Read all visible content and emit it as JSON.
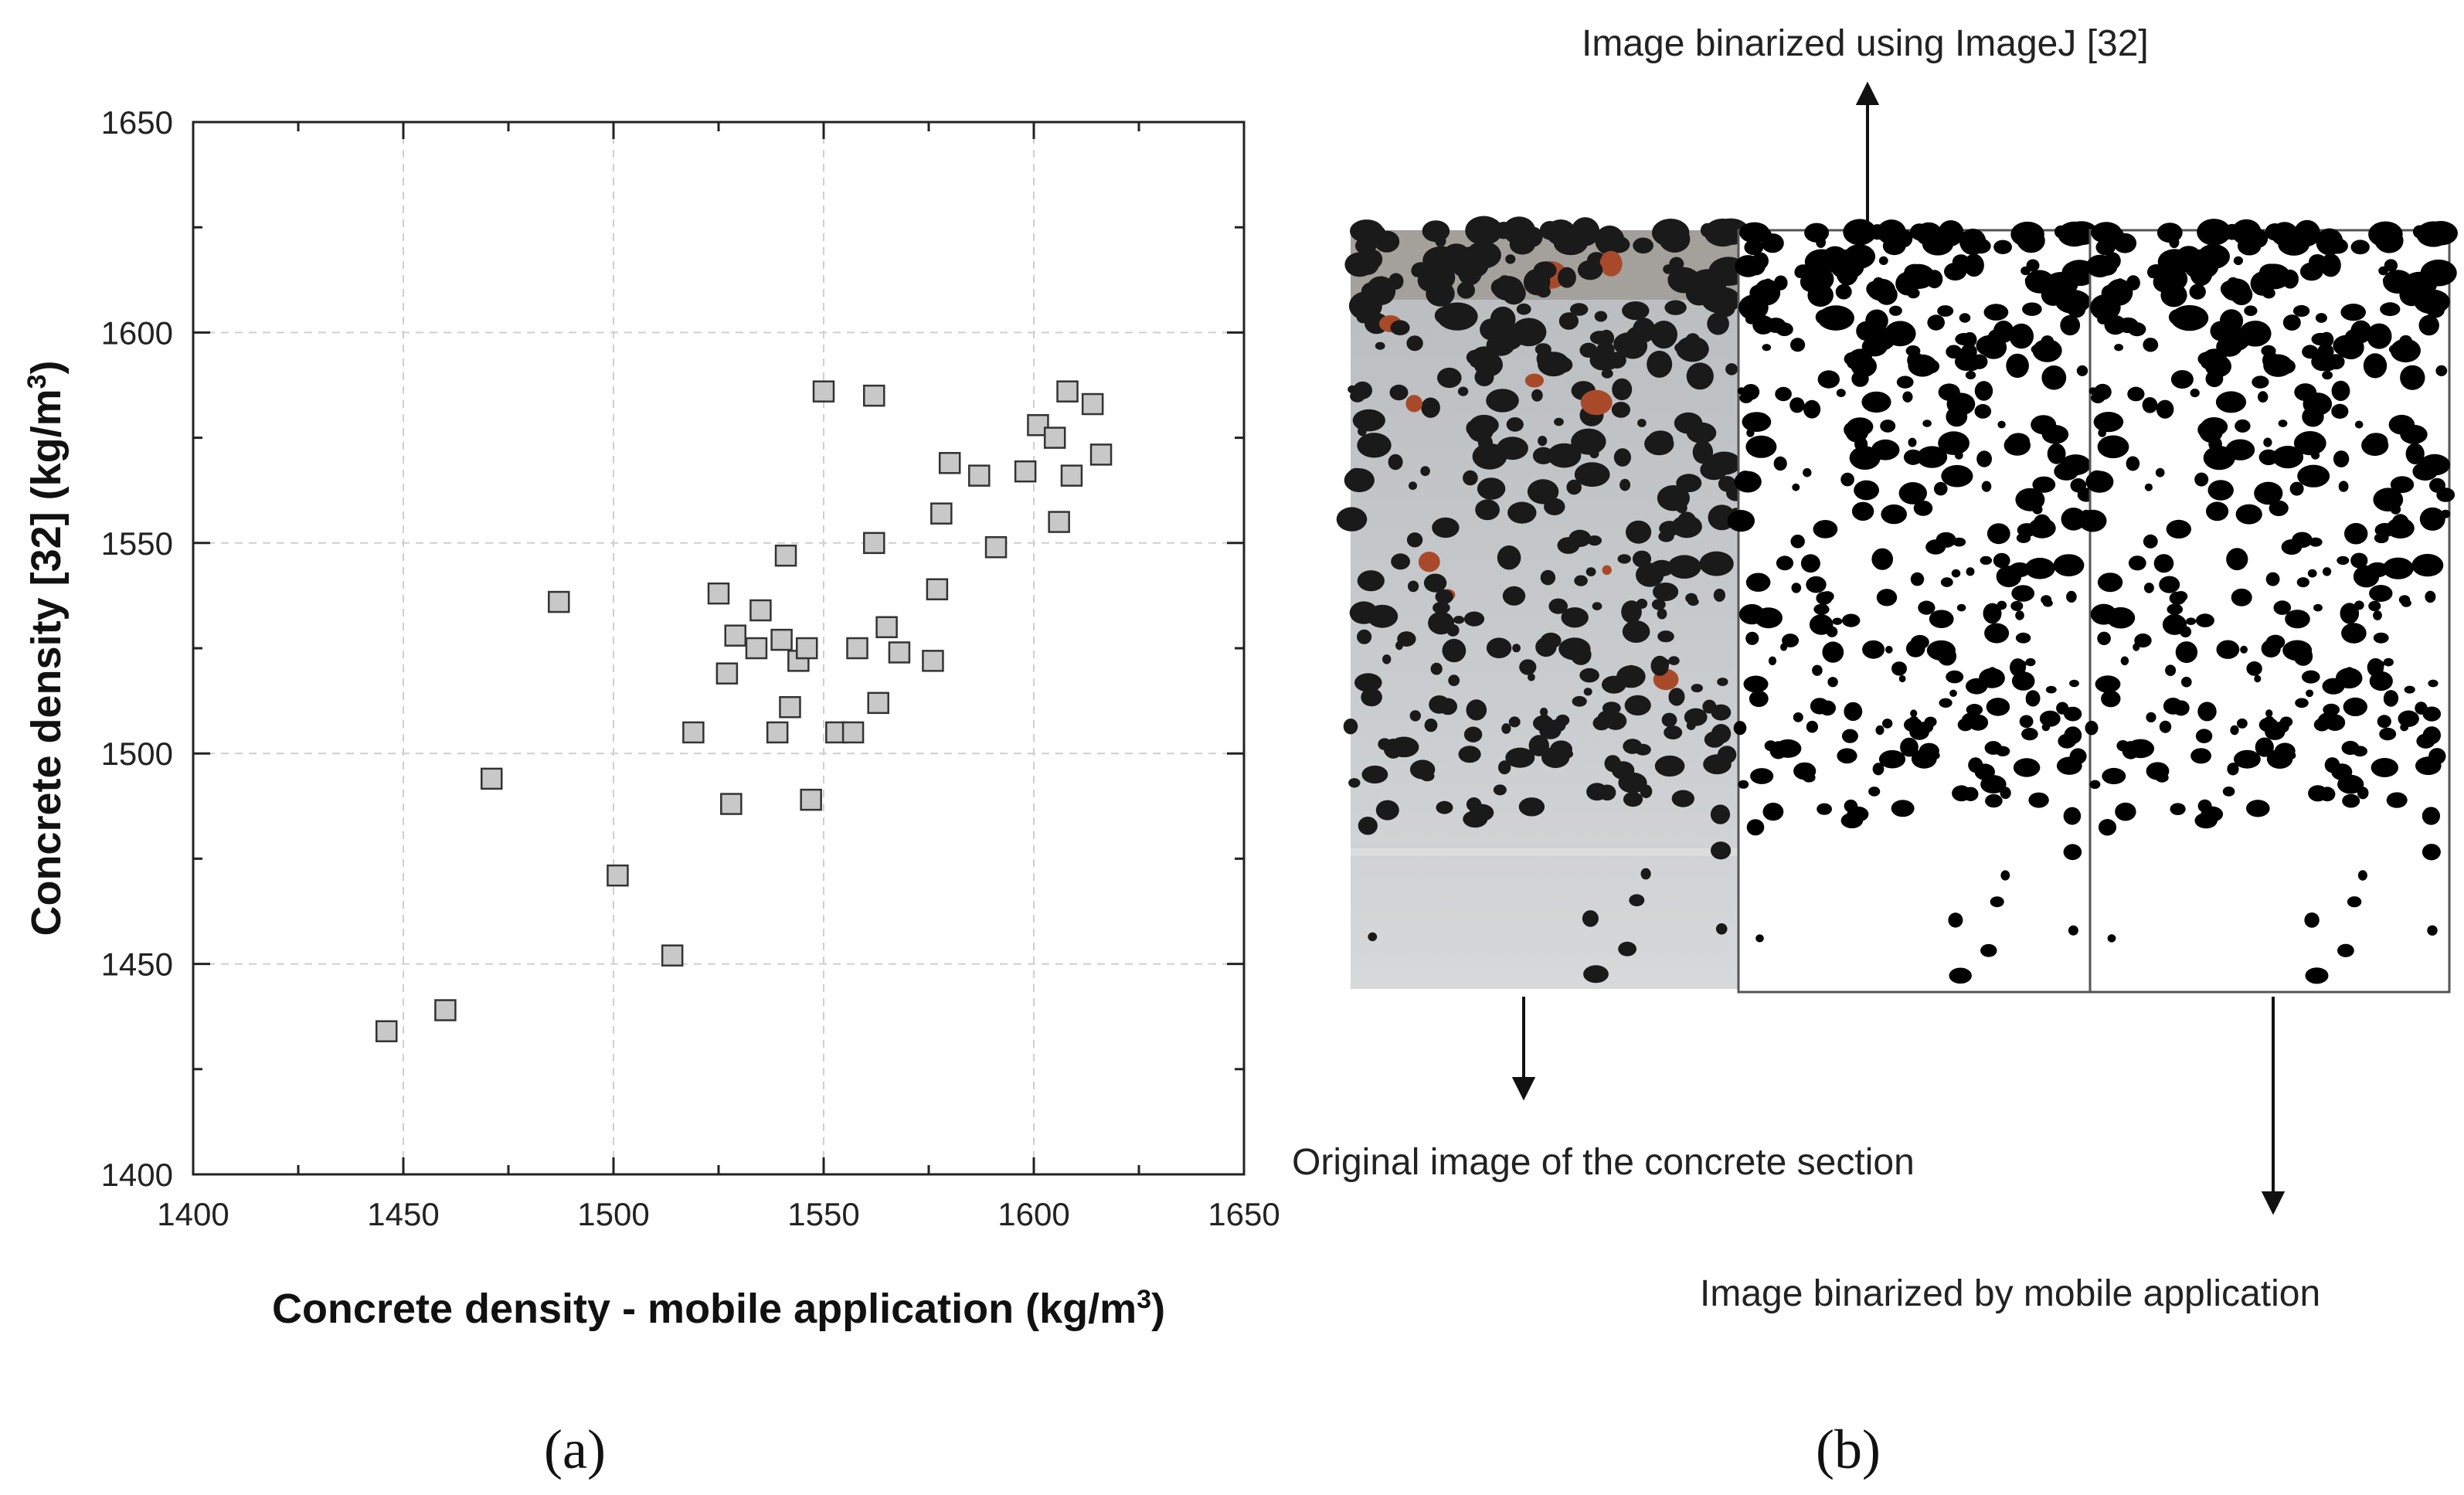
{
  "chart_data": {
    "type": "scatter",
    "xlabel": "Concrete density - mobile application (kg/m",
    "xlabel_sup": "3",
    "xlabel_tail": ")",
    "ylabel": "Concrete density [32]  (kg/m",
    "ylabel_sup": "3",
    "ylabel_tail": ")",
    "xlim": [
      1400,
      1650
    ],
    "ylim": [
      1400,
      1650
    ],
    "xticks": [
      1400,
      1450,
      1500,
      1550,
      1600,
      1650
    ],
    "yticks": [
      1400,
      1450,
      1500,
      1550,
      1600,
      1650
    ],
    "grid": true,
    "marker": "square",
    "marker_color": "#c8c8c8",
    "points": [
      {
        "x": 1446,
        "y": 1434
      },
      {
        "x": 1460,
        "y": 1439
      },
      {
        "x": 1471,
        "y": 1494
      },
      {
        "x": 1487,
        "y": 1536
      },
      {
        "x": 1501,
        "y": 1471
      },
      {
        "x": 1514,
        "y": 1452
      },
      {
        "x": 1519,
        "y": 1505
      },
      {
        "x": 1525,
        "y": 1538
      },
      {
        "x": 1527,
        "y": 1519
      },
      {
        "x": 1528,
        "y": 1488
      },
      {
        "x": 1529,
        "y": 1528
      },
      {
        "x": 1534,
        "y": 1525
      },
      {
        "x": 1535,
        "y": 1534
      },
      {
        "x": 1539,
        "y": 1505
      },
      {
        "x": 1540,
        "y": 1527
      },
      {
        "x": 1541,
        "y": 1547
      },
      {
        "x": 1542,
        "y": 1511
      },
      {
        "x": 1544,
        "y": 1522
      },
      {
        "x": 1546,
        "y": 1525
      },
      {
        "x": 1547,
        "y": 1489
      },
      {
        "x": 1550,
        "y": 1586
      },
      {
        "x": 1553,
        "y": 1505
      },
      {
        "x": 1557,
        "y": 1505
      },
      {
        "x": 1558,
        "y": 1525
      },
      {
        "x": 1562,
        "y": 1550
      },
      {
        "x": 1562,
        "y": 1585
      },
      {
        "x": 1563,
        "y": 1512
      },
      {
        "x": 1565,
        "y": 1530
      },
      {
        "x": 1568,
        "y": 1524
      },
      {
        "x": 1576,
        "y": 1522
      },
      {
        "x": 1577,
        "y": 1539
      },
      {
        "x": 1578,
        "y": 1557
      },
      {
        "x": 1580,
        "y": 1569
      },
      {
        "x": 1587,
        "y": 1566
      },
      {
        "x": 1591,
        "y": 1549
      },
      {
        "x": 1598,
        "y": 1567
      },
      {
        "x": 1601,
        "y": 1578
      },
      {
        "x": 1605,
        "y": 1575
      },
      {
        "x": 1606,
        "y": 1555
      },
      {
        "x": 1608,
        "y": 1586
      },
      {
        "x": 1609,
        "y": 1566
      },
      {
        "x": 1614,
        "y": 1583
      },
      {
        "x": 1616,
        "y": 1571
      }
    ]
  },
  "panel_a_label": "(a)",
  "panel_b_label": "(b)",
  "annotations": {
    "imagej": "Image binarized using ImageJ [32]",
    "original": "Original image of the concrete section",
    "mobile": "Image binarized by mobile application"
  },
  "colors": {
    "marker_fill": "#c8c8c8",
    "marker_stroke": "#333333",
    "grid": "#cfcfcf",
    "photo_background": "#c4c7ca",
    "aggregate": "#1a1a1a",
    "rust": "#a84a2a"
  }
}
